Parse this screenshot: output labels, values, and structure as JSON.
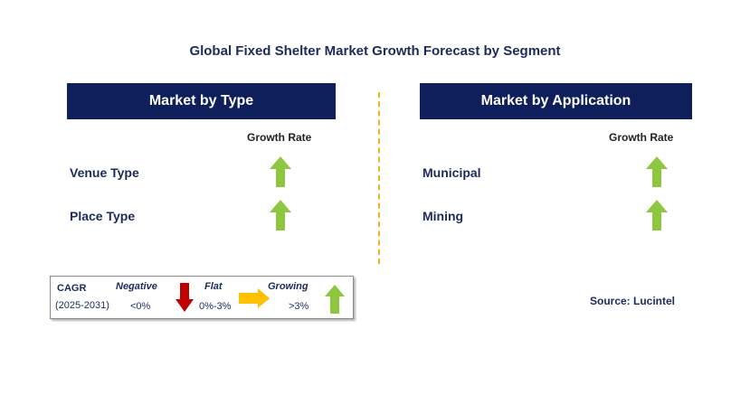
{
  "title": "Global Fixed Shelter Market Growth Forecast by Segment",
  "left_panel": {
    "header": "Market by Type",
    "growth_label": "Growth Rate",
    "rows": [
      {
        "label": "Venue Type",
        "trend": "growing"
      },
      {
        "label": "Place Type",
        "trend": "growing"
      }
    ]
  },
  "right_panel": {
    "header": "Market by Application",
    "growth_label": "Growth Rate",
    "rows": [
      {
        "label": "Municipal",
        "trend": "growing"
      },
      {
        "label": "Mining",
        "trend": "growing"
      }
    ]
  },
  "legend": {
    "cagr": "CAGR",
    "period": "(2025-2031)",
    "negative": {
      "label": "Negative",
      "value": "<0%"
    },
    "flat": {
      "label": "Flat",
      "value": "0%-3%"
    },
    "growing": {
      "label": "Growing",
      "value": ">3%"
    }
  },
  "source": "Source: Lucintel",
  "colors": {
    "header_bg": "#0f1f5c",
    "up_arrow": "#8dc63f",
    "down_arrow": "#c00000",
    "flat_arrow": "#ffc000",
    "divider": "#f2b41b"
  }
}
